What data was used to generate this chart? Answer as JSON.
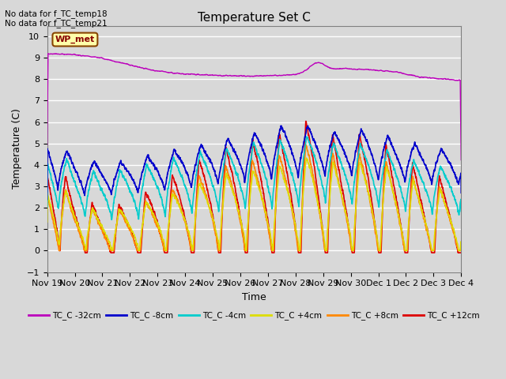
{
  "title": "Temperature Set C",
  "xlabel": "Time",
  "ylabel": "Temperature (C)",
  "ylim": [
    -1.0,
    10.5
  ],
  "xlim": [
    0,
    15.5
  ],
  "bg_color": "#d8d8d8",
  "annotations": [
    "No data for f_TC_temp18",
    "No data for f_TC_temp21"
  ],
  "wp_met_label": "WP_met",
  "xtick_labels": [
    "Nov 19",
    "Nov 20",
    "Nov 21",
    "Nov 22",
    "Nov 23",
    "Nov 24",
    "Nov 25",
    "Nov 26",
    "Nov 27",
    "Nov 28",
    "Nov 29",
    "Nov 30",
    "Dec 1",
    "Dec 2",
    "Dec 3",
    "Dec 4"
  ],
  "series_colors": {
    "TC_C -32cm": "#bb00bb",
    "TC_C -8cm": "#0000cc",
    "TC_C -4cm": "#00cccc",
    "TC_C +4cm": "#dddd00",
    "TC_C +8cm": "#ff8800",
    "TC_C +12cm": "#dd0000"
  },
  "legend_labels": [
    "TC_C -32cm",
    "TC_C -8cm",
    "TC_C -4cm",
    "TC_C +4cm",
    "TC_C +8cm",
    "TC_C +12cm"
  ],
  "legend_colors": [
    "#bb00bb",
    "#0000cc",
    "#00cccc",
    "#dddd00",
    "#ff8800",
    "#dd0000"
  ]
}
